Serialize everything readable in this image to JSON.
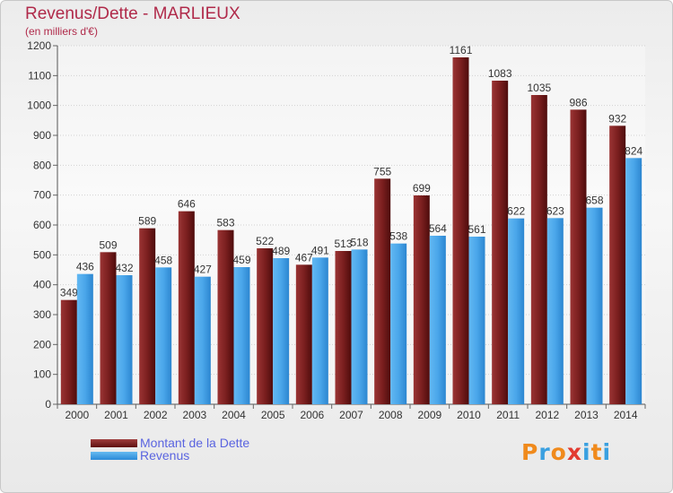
{
  "header": {
    "title": "Revenus/Dette - MARLIEUX",
    "subtitle": "(en milliers d'€)"
  },
  "legend": {
    "debt_label": "Montant de la Dette",
    "revenue_label": "Revenus"
  },
  "logo": {
    "text": "Proxiti",
    "colors": [
      "#f08a1c",
      "#3aa0e0",
      "#f08a1c",
      "#e23a30",
      "#3aa0e0",
      "#f08a1c",
      "#3aa0e0"
    ]
  },
  "colors": {
    "debt": "#7b1f1f",
    "revenue": "#4aa6ea",
    "title": "#b02a4a"
  },
  "chart_data": {
    "type": "bar",
    "categories": [
      "2000",
      "2001",
      "2002",
      "2003",
      "2004",
      "2005",
      "2006",
      "2007",
      "2008",
      "2009",
      "2010",
      "2011",
      "2012",
      "2013",
      "2014"
    ],
    "series": [
      {
        "name": "Montant de la Dette",
        "values": [
          349,
          509,
          589,
          646,
          583,
          522,
          467,
          513,
          755,
          699,
          1161,
          1083,
          1035,
          986,
          932
        ]
      },
      {
        "name": "Revenus",
        "values": [
          436,
          432,
          458,
          427,
          459,
          489,
          491,
          518,
          538,
          564,
          561,
          622,
          623,
          658,
          824
        ]
      }
    ],
    "ylim": [
      0,
      1200
    ],
    "yticks": [
      0,
      100,
      200,
      300,
      400,
      500,
      600,
      700,
      800,
      900,
      1000,
      1100,
      1200
    ],
    "grid": true,
    "legend_position": "bottom-left"
  }
}
